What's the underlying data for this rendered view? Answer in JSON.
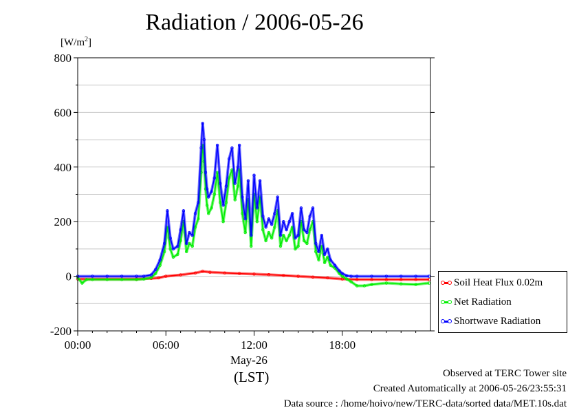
{
  "chart_data": {
    "type": "line",
    "title": "Radiation / 2006-05-26",
    "ylabel": "[W/m",
    "ylabel_exp": "2",
    "ylabel_close": "]",
    "xlabel_date": "May-26",
    "xlabel_tz": "(LST)",
    "ylim": [
      -200,
      800
    ],
    "yticks": [
      -200,
      0,
      200,
      400,
      600,
      800
    ],
    "xlim_hours": [
      0,
      24
    ],
    "xticks": [
      {
        "hour": 0,
        "label": "00:00"
      },
      {
        "hour": 6,
        "label": "06:00"
      },
      {
        "hour": 12,
        "label": "12:00"
      },
      {
        "hour": 18,
        "label": "18:00"
      }
    ],
    "grid": true,
    "legend_position": "right",
    "series": [
      {
        "name": "Soil Heat Flux 0.02m",
        "color": "#ff0000",
        "x": [
          0,
          4,
          5,
          5.5,
          6,
          7,
          8,
          8.5,
          9,
          10,
          11,
          12,
          13,
          14,
          15,
          16,
          17,
          18,
          19,
          20,
          21,
          22,
          23,
          23.9
        ],
        "y": [
          -10,
          -10,
          -8,
          -6,
          0,
          5,
          12,
          18,
          15,
          12,
          10,
          8,
          6,
          3,
          0,
          -3,
          -6,
          -10,
          -12,
          -12,
          -12,
          -12,
          -12,
          -12
        ]
      },
      {
        "name": "Net Radiation",
        "color": "#00ee00",
        "x": [
          0,
          0.3,
          0.6,
          1,
          2,
          3,
          4,
          4.5,
          5,
          5.3,
          5.6,
          5.9,
          6.1,
          6.3,
          6.5,
          6.8,
          7.0,
          7.2,
          7.4,
          7.6,
          7.8,
          8.0,
          8.2,
          8.4,
          8.5,
          8.6,
          8.7,
          8.8,
          8.9,
          9.1,
          9.3,
          9.5,
          9.7,
          9.9,
          10.1,
          10.3,
          10.5,
          10.7,
          10.9,
          11.0,
          11.2,
          11.4,
          11.6,
          11.8,
          12.0,
          12.2,
          12.4,
          12.6,
          12.8,
          13.0,
          13.2,
          13.4,
          13.6,
          13.8,
          14.0,
          14.2,
          14.4,
          14.6,
          14.8,
          15.0,
          15.2,
          15.4,
          15.6,
          15.8,
          16.0,
          16.2,
          16.4,
          16.6,
          16.8,
          17.0,
          17.2,
          17.5,
          17.8,
          18.0,
          18.3,
          18.6,
          19.0,
          19.5,
          20,
          21,
          22,
          23,
          23.9
        ],
        "y": [
          -5,
          -25,
          -12,
          -12,
          -12,
          -12,
          -12,
          -10,
          -5,
          10,
          40,
          90,
          180,
          100,
          70,
          80,
          130,
          200,
          90,
          120,
          110,
          180,
          210,
          380,
          480,
          420,
          320,
          260,
          230,
          250,
          300,
          380,
          270,
          200,
          270,
          360,
          390,
          280,
          330,
          390,
          230,
          160,
          280,
          110,
          300,
          200,
          290,
          170,
          130,
          160,
          140,
          180,
          240,
          110,
          150,
          130,
          150,
          180,
          100,
          110,
          200,
          130,
          120,
          170,
          200,
          90,
          60,
          110,
          50,
          70,
          40,
          30,
          10,
          0,
          -10,
          -20,
          -35,
          -35,
          -30,
          -25,
          -28,
          -30,
          -25
        ]
      },
      {
        "name": "Shortwave Radiation",
        "color": "#0000ff",
        "x": [
          0,
          1,
          2,
          3,
          4,
          4.5,
          5,
          5.3,
          5.6,
          5.9,
          6.1,
          6.3,
          6.5,
          6.8,
          7.0,
          7.2,
          7.4,
          7.6,
          7.8,
          8.0,
          8.2,
          8.4,
          8.5,
          8.6,
          8.7,
          8.8,
          8.9,
          9.1,
          9.3,
          9.5,
          9.7,
          9.9,
          10.1,
          10.3,
          10.5,
          10.7,
          10.9,
          11.0,
          11.2,
          11.4,
          11.6,
          11.8,
          12.0,
          12.2,
          12.4,
          12.6,
          12.8,
          13.0,
          13.2,
          13.4,
          13.6,
          13.8,
          14.0,
          14.2,
          14.4,
          14.6,
          14.8,
          15.0,
          15.2,
          15.4,
          15.6,
          15.8,
          16.0,
          16.2,
          16.4,
          16.6,
          16.8,
          17.0,
          17.2,
          17.5,
          17.8,
          18.0,
          18.3,
          18.6,
          19.0,
          20,
          21,
          22,
          23,
          23.9
        ],
        "y": [
          0,
          0,
          0,
          0,
          0,
          0,
          5,
          25,
          60,
          120,
          240,
          140,
          100,
          110,
          170,
          240,
          120,
          160,
          150,
          230,
          270,
          470,
          560,
          500,
          380,
          320,
          290,
          310,
          360,
          480,
          340,
          260,
          330,
          430,
          470,
          340,
          400,
          480,
          290,
          210,
          350,
          150,
          370,
          250,
          350,
          220,
          180,
          210,
          190,
          230,
          290,
          150,
          200,
          170,
          200,
          230,
          140,
          150,
          250,
          170,
          160,
          220,
          250,
          120,
          90,
          150,
          80,
          100,
          60,
          40,
          20,
          10,
          2,
          0,
          0,
          0,
          0,
          0,
          0,
          0
        ]
      }
    ]
  },
  "footer": {
    "line1": "Observed at TERC Tower site",
    "line2": "Created Automatically at 2006-05-26/23:55:31",
    "line3": "Data source : /home/hoivo/new/TERC-data/sorted  data/MET.10s.dat"
  }
}
